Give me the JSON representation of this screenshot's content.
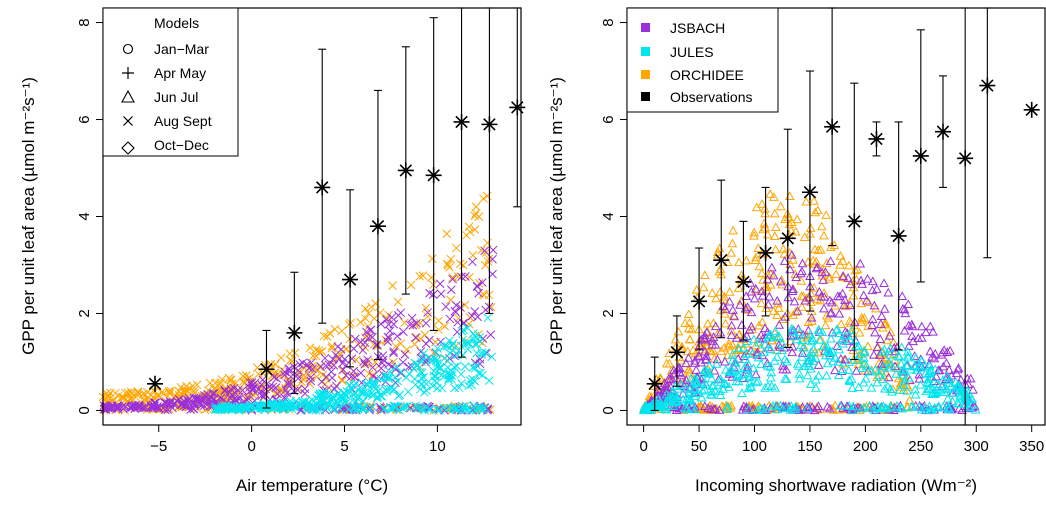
{
  "colors": {
    "JSBACH": "#9b30d9",
    "JULES": "#00e5ee",
    "ORCHIDEE": "#ffa500",
    "Observations": "#000000"
  },
  "chart_data": [
    {
      "type": "scatter",
      "xlabel": "Air temperature (°C)",
      "ylabel": "GPP per unit leaf area (µmol m⁻²s⁻¹)",
      "xlim": [
        -8,
        14.5
      ],
      "ylim": [
        -0.3,
        8.3
      ],
      "xticks": [
        -5,
        0,
        5,
        10
      ],
      "yticks": [
        0,
        2,
        4,
        6,
        8
      ],
      "legend": {
        "position": "top-left",
        "title": "Models",
        "entries": [
          {
            "symbol": "circle",
            "label": "Jan−Mar"
          },
          {
            "symbol": "plus",
            "label": "Apr May"
          },
          {
            "symbol": "triangle",
            "label": "Jun Jul"
          },
          {
            "symbol": "cross",
            "label": "Aug Sept"
          },
          {
            "symbol": "diamond",
            "label": "Oct−Dec"
          }
        ]
      },
      "observations": [
        {
          "x": -5.2,
          "y": 0.55,
          "lo": 0.55,
          "hi": 0.55
        },
        {
          "x": 0.8,
          "y": 0.85,
          "lo": 0.05,
          "hi": 1.65
        },
        {
          "x": 2.3,
          "y": 1.6,
          "lo": 0.35,
          "hi": 2.85
        },
        {
          "x": 3.8,
          "y": 4.6,
          "lo": 1.8,
          "hi": 7.45
        },
        {
          "x": 5.3,
          "y": 2.7,
          "lo": 0.9,
          "hi": 4.55
        },
        {
          "x": 6.8,
          "y": 3.8,
          "lo": 1.05,
          "hi": 6.6
        },
        {
          "x": 8.3,
          "y": 4.95,
          "lo": 2.4,
          "hi": 7.5
        },
        {
          "x": 9.8,
          "y": 4.85,
          "lo": 1.65,
          "hi": 8.1
        },
        {
          "x": 11.3,
          "y": 5.95,
          "lo": 1.1,
          "hi": 8.3
        },
        {
          "x": 12.8,
          "y": 5.9,
          "lo": 2.0,
          "hi": 8.3
        },
        {
          "x": 14.3,
          "y": 6.25,
          "lo": 4.2,
          "hi": 8.3
        }
      ],
      "series_cloud": [
        {
          "model": "ORCHIDEE",
          "symbol": "cross",
          "xrange": [
            -8,
            13
          ],
          "level": 0.5
        },
        {
          "model": "JSBACH",
          "symbol": "cross",
          "xrange": [
            -8,
            13
          ],
          "level": 0.3
        },
        {
          "model": "JULES",
          "symbol": "cross",
          "xrange": [
            -2,
            13
          ],
          "level": 0.2
        }
      ]
    },
    {
      "type": "scatter",
      "xlabel": "Incoming shortwave radiation (Wm⁻²)",
      "ylabel": "GPP per unit leaf area (µmol m⁻²s⁻¹)",
      "xlim": [
        -15,
        362
      ],
      "ylim": [
        -0.3,
        8.3
      ],
      "xticks": [
        0,
        50,
        100,
        150,
        200,
        250,
        300,
        350
      ],
      "yticks": [
        0,
        2,
        4,
        6,
        8
      ],
      "legend": {
        "position": "top-left",
        "entries": [
          {
            "label": "JSBACH",
            "color": "#9b30d9"
          },
          {
            "label": "JULES",
            "color": "#00e5ee"
          },
          {
            "label": "ORCHIDEE",
            "color": "#ffa500"
          },
          {
            "label": "Observations",
            "color": "#000000"
          }
        ]
      },
      "observations": [
        {
          "x": 10,
          "y": 0.55,
          "lo": 0.0,
          "hi": 1.1
        },
        {
          "x": 30,
          "y": 1.2,
          "lo": 0.5,
          "hi": 1.95
        },
        {
          "x": 50,
          "y": 2.25,
          "lo": 1.25,
          "hi": 3.35
        },
        {
          "x": 70,
          "y": 3.1,
          "lo": 1.5,
          "hi": 4.75
        },
        {
          "x": 90,
          "y": 2.65,
          "lo": 1.45,
          "hi": 3.9
        },
        {
          "x": 110,
          "y": 3.25,
          "lo": 1.95,
          "hi": 4.6
        },
        {
          "x": 130,
          "y": 3.55,
          "lo": 1.3,
          "hi": 5.8
        },
        {
          "x": 150,
          "y": 4.5,
          "lo": 2.05,
          "hi": 7.0
        },
        {
          "x": 170,
          "y": 5.85,
          "lo": 3.4,
          "hi": 8.3
        },
        {
          "x": 190,
          "y": 3.9,
          "lo": 1.05,
          "hi": 6.75
        },
        {
          "x": 210,
          "y": 5.6,
          "lo": 5.25,
          "hi": 5.95
        },
        {
          "x": 230,
          "y": 3.6,
          "lo": 1.25,
          "hi": 5.95
        },
        {
          "x": 250,
          "y": 5.25,
          "lo": 2.65,
          "hi": 7.85
        },
        {
          "x": 270,
          "y": 5.75,
          "lo": 4.6,
          "hi": 6.9
        },
        {
          "x": 290,
          "y": 5.2,
          "lo": -0.3,
          "hi": 8.3
        },
        {
          "x": 310,
          "y": 6.7,
          "lo": 3.15,
          "hi": 8.3
        },
        {
          "x": 350,
          "y": 6.2,
          "lo": 6.2,
          "hi": 6.2
        }
      ],
      "series_cloud": [
        {
          "model": "ORCHIDEE",
          "symbol": "triangle",
          "xrange": [
            0,
            240
          ],
          "peak": 4.6
        },
        {
          "model": "JSBACH",
          "symbol": "triangle",
          "xrange": [
            0,
            300
          ],
          "peak": 3.3
        },
        {
          "model": "JULES",
          "symbol": "triangle",
          "xrange": [
            0,
            300
          ],
          "peak": 1.8
        }
      ]
    }
  ]
}
